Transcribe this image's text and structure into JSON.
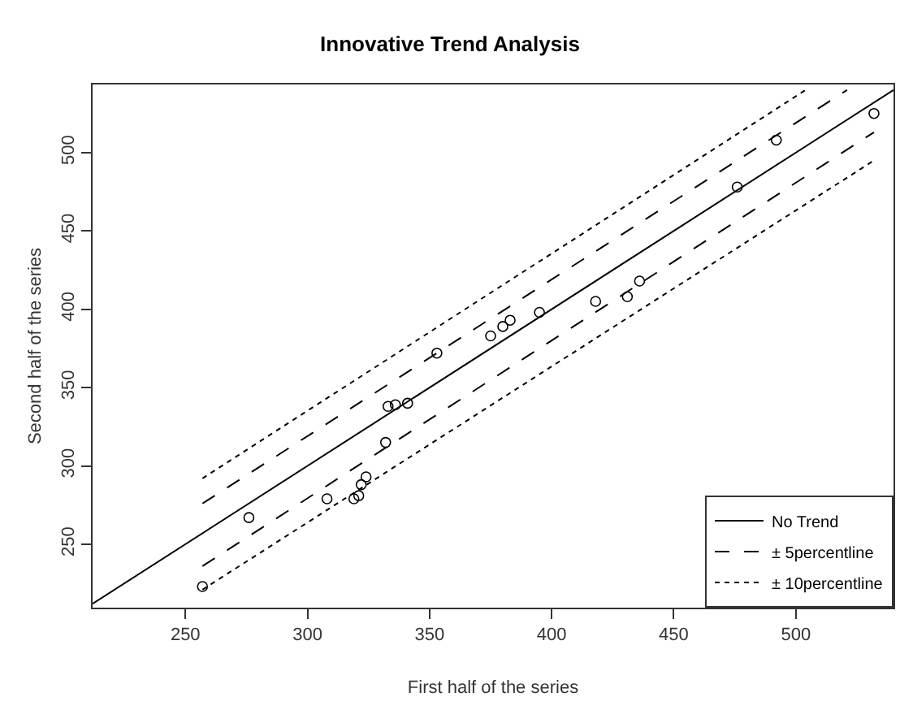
{
  "chart_data": {
    "type": "scatter",
    "title": "Innovative Trend Analysis",
    "xlabel": "First half of the series",
    "ylabel": "Second half of the series",
    "xlim": [
      212,
      540
    ],
    "ylim": [
      209.5,
      543.5
    ],
    "xticks": [
      250,
      300,
      350,
      400,
      450,
      500
    ],
    "yticks": [
      250,
      300,
      350,
      400,
      450,
      500
    ],
    "legend": "bottom right",
    "series": [
      {
        "marker": "circle",
        "color": "#000000",
        "x": [
          257,
          276,
          308,
          319,
          321,
          322,
          324,
          332,
          333,
          336,
          341,
          353,
          375,
          380,
          383,
          395,
          418,
          431,
          436,
          476,
          492,
          532
        ],
        "values": [
          223,
          267,
          279,
          279,
          281,
          288,
          293,
          315,
          338,
          339,
          340,
          372,
          383,
          389,
          393,
          398,
          405,
          408,
          418,
          478,
          508,
          525
        ]
      },
      {
        "type": "line",
        "name": "No Trend",
        "line_style": "solid",
        "color": "#000000",
        "x": [
          212,
          540
        ],
        "values": [
          212,
          540
        ]
      },
      {
        "type": "line",
        "name": "± 5percentline",
        "line_style": "dashed",
        "color": "#000000",
        "x": [
          257,
          521
        ],
        "values": [
          276,
          540
        ]
      },
      {
        "type": "line",
        "line_style": "dashed",
        "color": "#000000",
        "x": [
          257,
          532
        ],
        "values": [
          236,
          513
        ]
      },
      {
        "type": "line",
        "name": "± 10percentline",
        "line_style": "dotted",
        "color": "#000000",
        "x": [
          257,
          505
        ],
        "values": [
          292,
          541
        ]
      },
      {
        "type": "line",
        "line_style": "dotted",
        "color": "#000000",
        "x": [
          257,
          532
        ],
        "values": [
          221,
          495
        ]
      }
    ]
  }
}
